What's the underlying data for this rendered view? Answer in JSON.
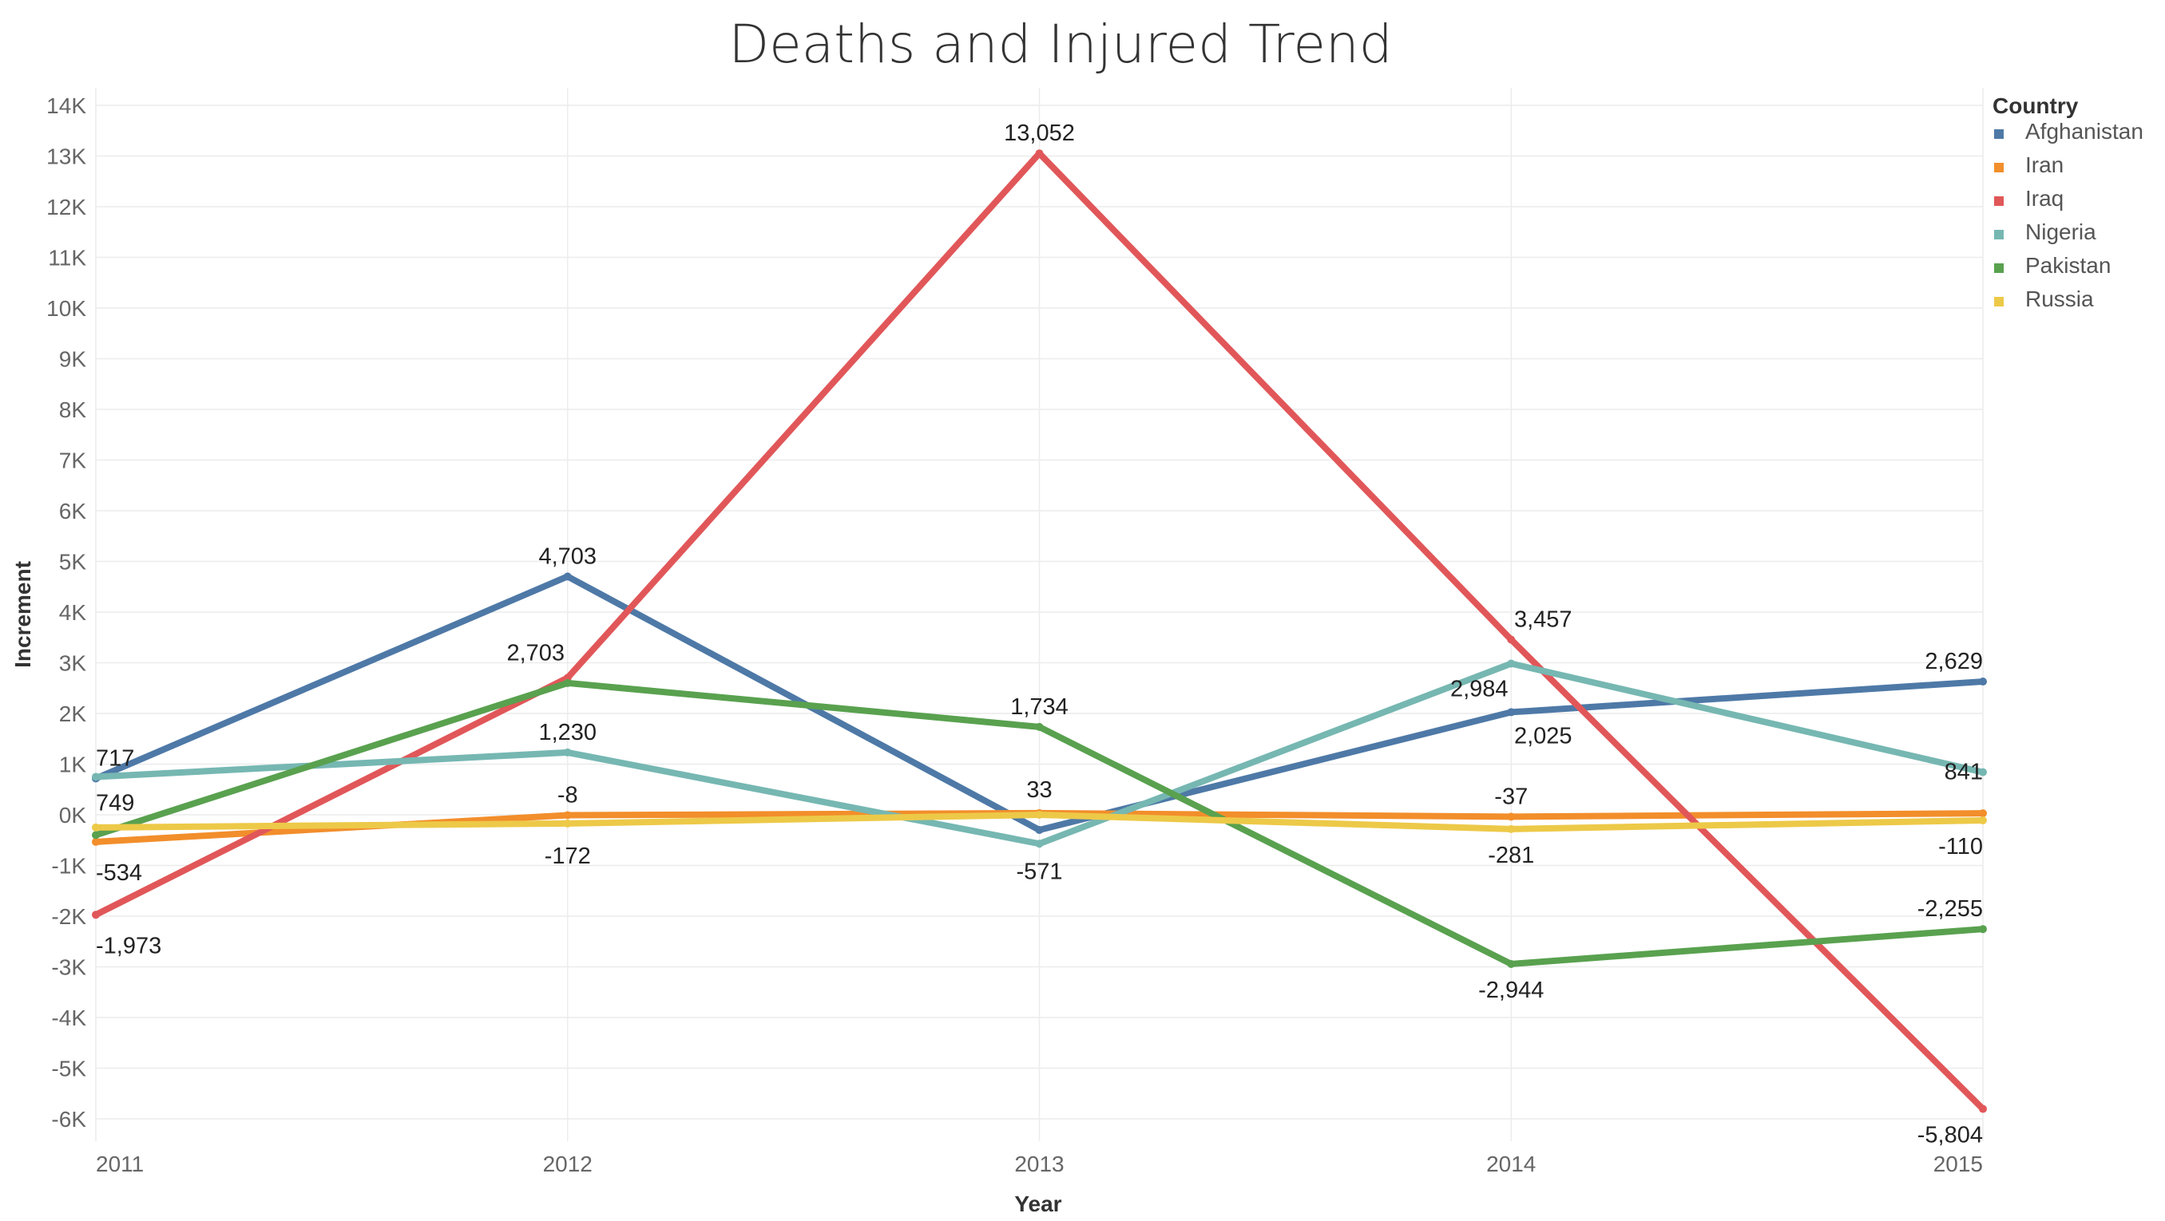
{
  "chart_data": {
    "type": "line",
    "title": "Deaths and Injured Trend",
    "xlabel": "Year",
    "ylabel": "Increment",
    "x": [
      "2011",
      "2012",
      "2013",
      "2014",
      "2015"
    ],
    "ylim": [
      -7000,
      14000
    ],
    "yticks": [
      14000,
      13000,
      12000,
      11000,
      10000,
      9000,
      8000,
      7000,
      6000,
      5000,
      4000,
      3000,
      2000,
      1000,
      0,
      -1000,
      -2000,
      -3000,
      -4000,
      -5000,
      -6000
    ],
    "ytick_labels": [
      "14K",
      "13K",
      "12K",
      "11K",
      "10K",
      "9K",
      "8K",
      "7K",
      "6K",
      "5K",
      "4K",
      "3K",
      "2K",
      "1K",
      "0K",
      "-1K",
      "-2K",
      "-3K",
      "-4K",
      "-5K",
      "-6K"
    ],
    "grid": true,
    "legend": {
      "title": "Country",
      "position": "top-right"
    },
    "series": [
      {
        "name": "Afghanistan",
        "color": "#4e79a7",
        "values": [
          717,
          4703,
          -300,
          2025,
          2629
        ]
      },
      {
        "name": "Iran",
        "color": "#f28e2b",
        "values": [
          -534,
          -8,
          33,
          -37,
          30
        ]
      },
      {
        "name": "Iraq",
        "color": "#e15759",
        "values": [
          -1973,
          2703,
          13052,
          3457,
          -5804
        ]
      },
      {
        "name": "Nigeria",
        "color": "#76b7b2",
        "values": [
          749,
          1230,
          -571,
          2984,
          841
        ]
      },
      {
        "name": "Pakistan",
        "color": "#59a14f",
        "values": [
          -400,
          2600,
          1734,
          -2944,
          -2255
        ]
      },
      {
        "name": "Russia",
        "color": "#edc948",
        "values": [
          -250,
          -172,
          0,
          -281,
          -110
        ]
      }
    ],
    "data_labels": [
      {
        "text": "717",
        "series": "Afghanistan",
        "x": "2011",
        "y": 717
      },
      {
        "text": "749",
        "series": "Nigeria",
        "x": "2011",
        "y": 749
      },
      {
        "text": "-534",
        "series": "Iran",
        "x": "2011",
        "y": -534
      },
      {
        "text": "-1,973",
        "series": "Iraq",
        "x": "2011",
        "y": -1973
      },
      {
        "text": "4,703",
        "series": "Afghanistan",
        "x": "2012",
        "y": 4703
      },
      {
        "text": "2,703",
        "series": "Iraq",
        "x": "2012",
        "y": 2703
      },
      {
        "text": "1,230",
        "series": "Nigeria",
        "x": "2012",
        "y": 1230
      },
      {
        "text": "-8",
        "series": "Iran",
        "x": "2012",
        "y": -8
      },
      {
        "text": "-172",
        "series": "Russia",
        "x": "2012",
        "y": -172
      },
      {
        "text": "13,052",
        "series": "Iraq",
        "x": "2013",
        "y": 13052
      },
      {
        "text": "1,734",
        "series": "Pakistan",
        "x": "2013",
        "y": 1734
      },
      {
        "text": "33",
        "series": "Iran",
        "x": "2013",
        "y": 33
      },
      {
        "text": "-571",
        "series": "Nigeria",
        "x": "2013",
        "y": -571
      },
      {
        "text": "3,457",
        "series": "Iraq",
        "x": "2014",
        "y": 3457
      },
      {
        "text": "2,984",
        "series": "Nigeria",
        "x": "2014",
        "y": 2984
      },
      {
        "text": "2,025",
        "series": "Afghanistan",
        "x": "2014",
        "y": 2025
      },
      {
        "text": "-37",
        "series": "Iran",
        "x": "2014",
        "y": -37
      },
      {
        "text": "-281",
        "series": "Russia",
        "x": "2014",
        "y": -281
      },
      {
        "text": "-2,944",
        "series": "Pakistan",
        "x": "2014",
        "y": -2944
      },
      {
        "text": "2,629",
        "series": "Afghanistan",
        "x": "2015",
        "y": 2629
      },
      {
        "text": "841",
        "series": "Nigeria",
        "x": "2015",
        "y": 841
      },
      {
        "text": "-110",
        "series": "Russia",
        "x": "2015",
        "y": -110
      },
      {
        "text": "-2,255",
        "series": "Pakistan",
        "x": "2015",
        "y": -2255
      },
      {
        "text": "-5,804",
        "series": "Iraq",
        "x": "2015",
        "y": -5804
      }
    ]
  }
}
